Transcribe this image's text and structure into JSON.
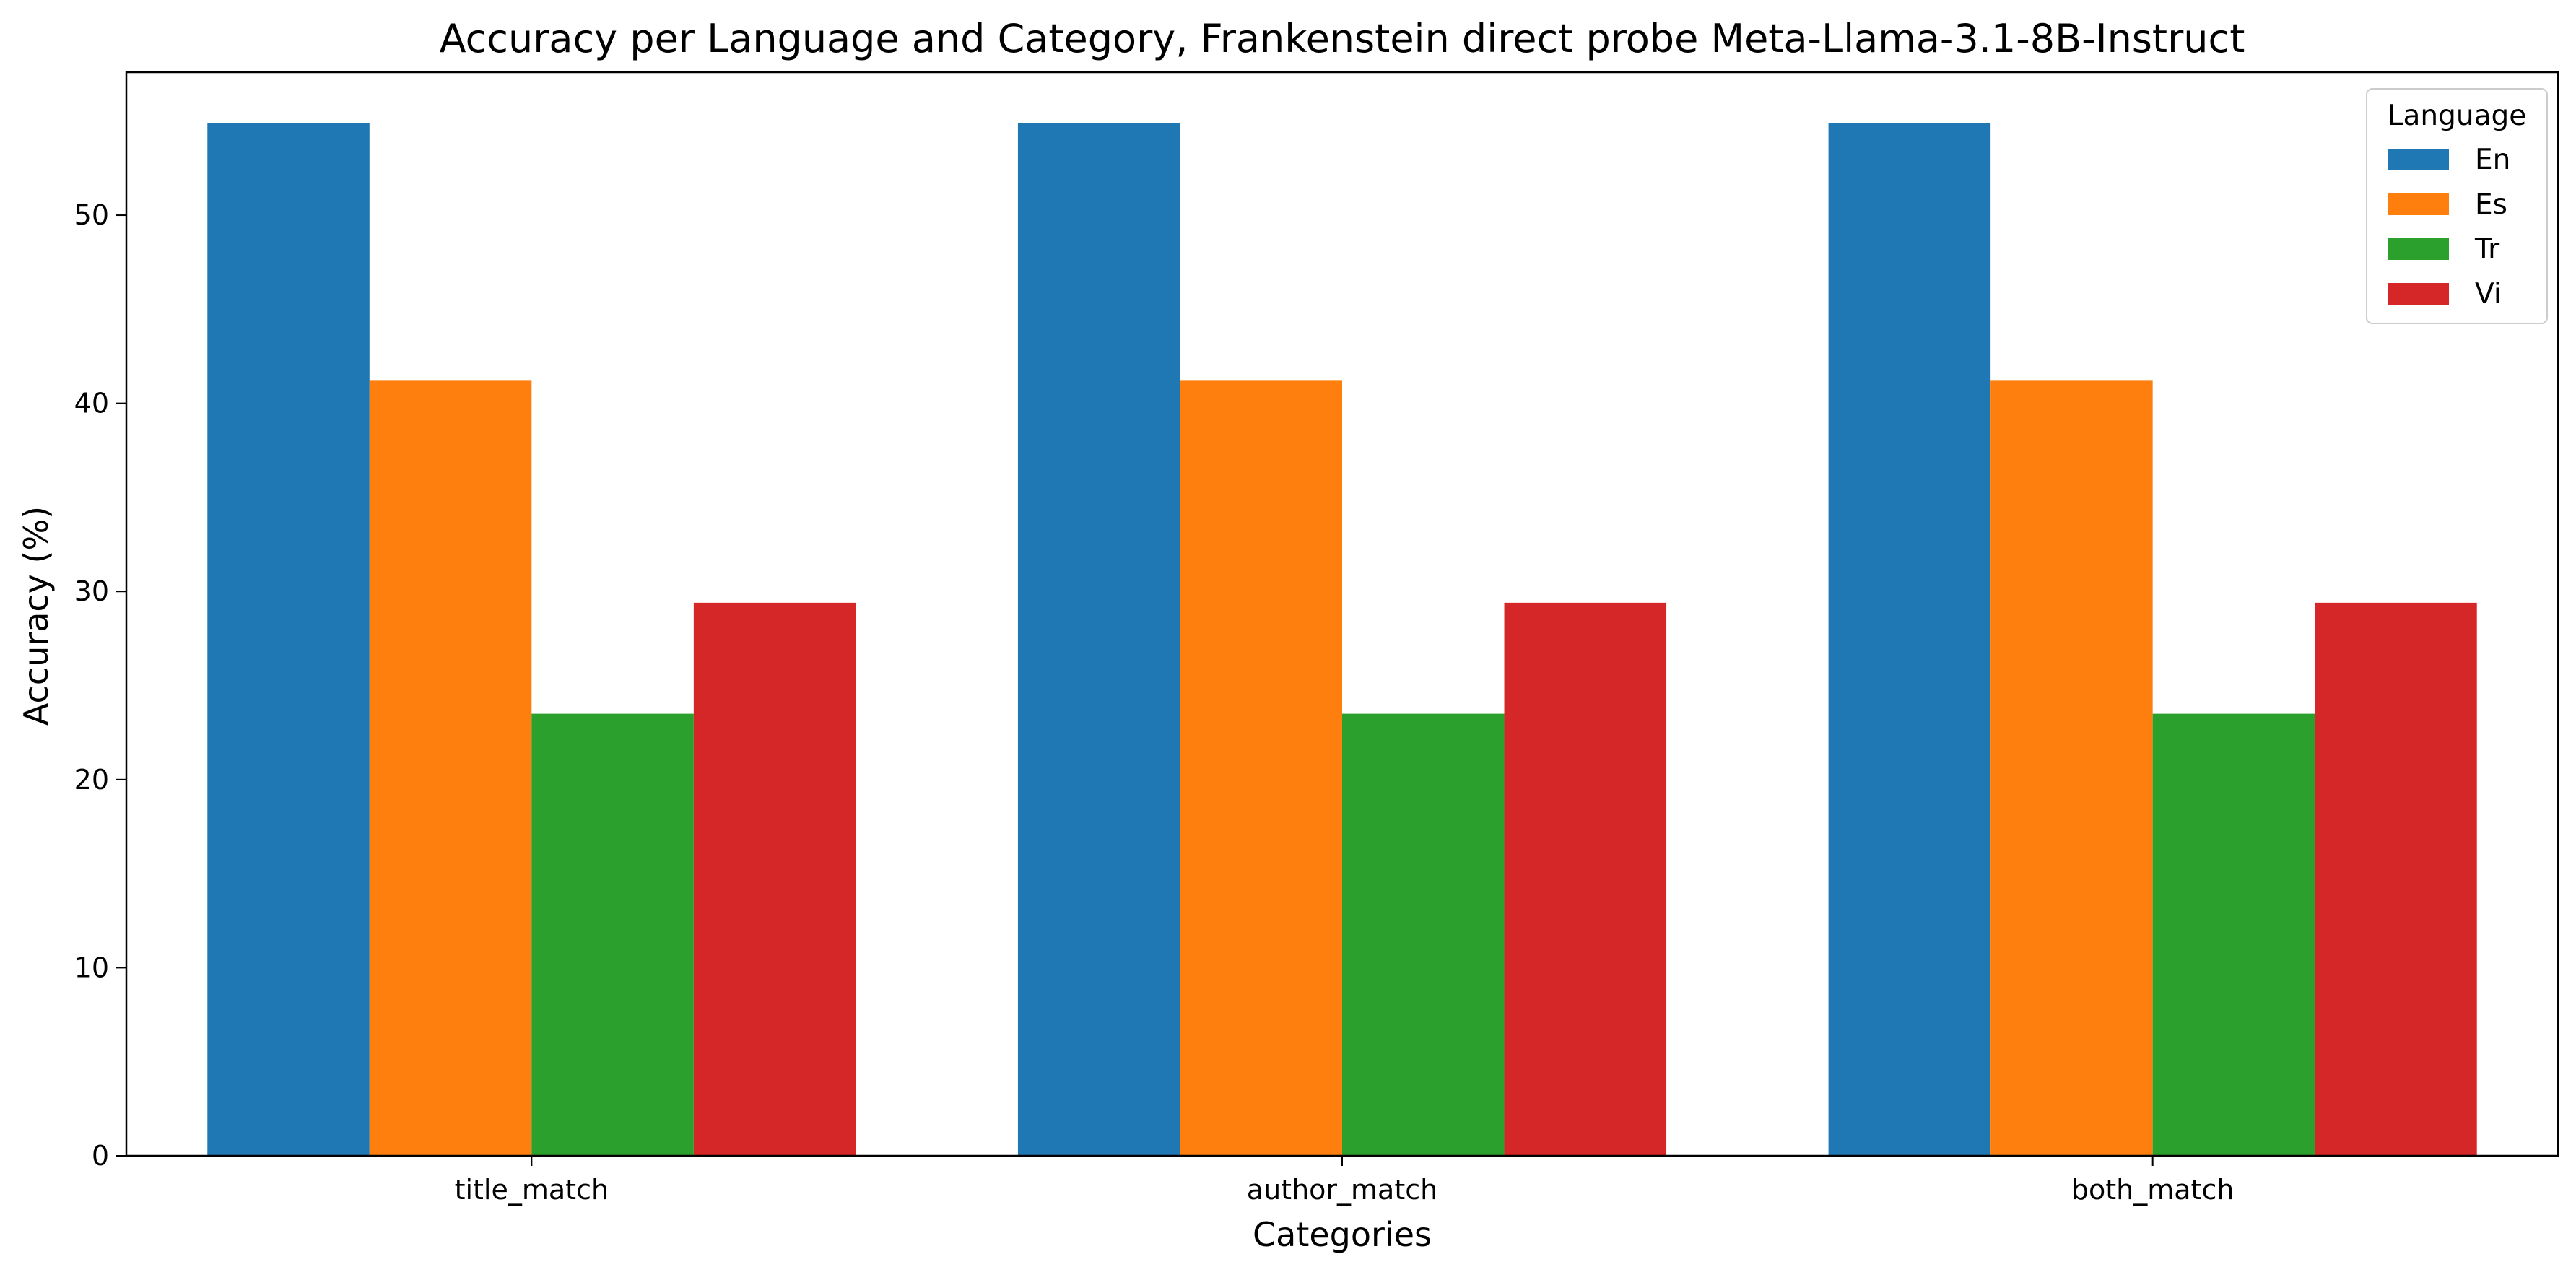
{
  "chart_data": {
    "type": "bar",
    "title": "Accuracy per Language and Category, Frankenstein direct probe Meta-Llama-3.1-8B-Instruct",
    "xlabel": "Categories",
    "ylabel": "Accuracy (%)",
    "categories": [
      "title_match",
      "author_match",
      "both_match"
    ],
    "series": [
      {
        "name": "En",
        "color": "#1f77b4",
        "values": [
          54.9,
          54.9,
          54.9
        ]
      },
      {
        "name": "Es",
        "color": "#ff7f0e",
        "values": [
          41.2,
          41.2,
          41.2
        ]
      },
      {
        "name": "Tr",
        "color": "#2ca02c",
        "values": [
          23.5,
          23.5,
          23.5
        ]
      },
      {
        "name": "Vi",
        "color": "#d62728",
        "values": [
          29.4,
          29.4,
          29.4
        ]
      }
    ],
    "ylim": [
      0,
      57.6
    ],
    "yticks": [
      0,
      10,
      20,
      30,
      40,
      50
    ],
    "grid": false,
    "legend": {
      "title": "Language",
      "position": "top-right"
    }
  }
}
